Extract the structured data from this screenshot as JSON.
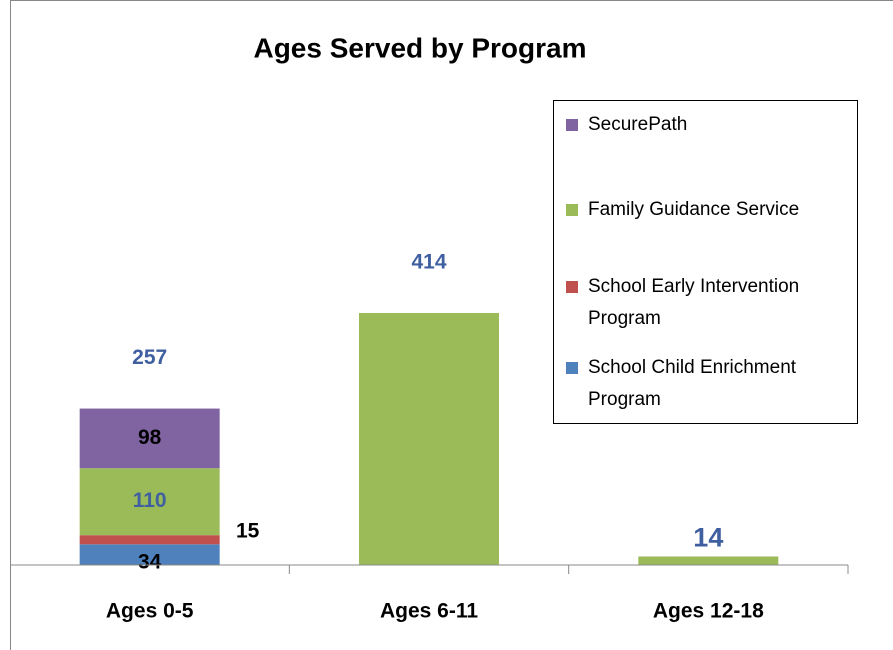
{
  "chart_data": {
    "type": "bar",
    "stacked": true,
    "title": "Ages Served by Program",
    "categories": [
      "Ages 0-5",
      "Ages 6-11",
      "Ages 12-18"
    ],
    "series": [
      {
        "name": "School Child Enrichment Program",
        "color": "#4f81bd",
        "values": [
          34,
          null,
          null
        ]
      },
      {
        "name": "School Early Intervention Program",
        "color": "#c0504d",
        "values": [
          15,
          null,
          null
        ]
      },
      {
        "name": "Family Guidance Service",
        "color": "#9bbb59",
        "values": [
          110,
          414,
          14
        ]
      },
      {
        "name": "SecurePath",
        "color": "#8064a2",
        "values": [
          98,
          null,
          null
        ]
      }
    ],
    "totals": [
      257,
      414,
      14
    ],
    "legend": "right"
  }
}
